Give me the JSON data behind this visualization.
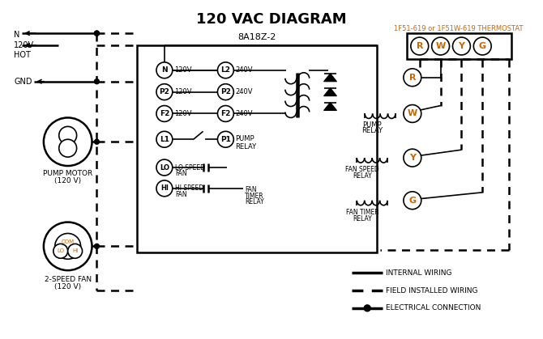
{
  "title": "120 VAC DIAGRAM",
  "title_fontsize": 13,
  "title_fontweight": "bold",
  "bg_color": "#ffffff",
  "text_color": "#000000",
  "orange_color": "#cc6600",
  "thermostat_label": "1F51-619 or 1F51W-619 THERMOSTAT",
  "controller_label": "8A18Z-2",
  "terminal_labels_thermostat": [
    "R",
    "W",
    "Y",
    "G"
  ],
  "pump_motor_label": "PUMP MOTOR\n(120 V)",
  "fan_label": "2-SPEED FAN\n(120 V)",
  "legend_items": [
    "INTERNAL WIRING",
    "FIELD INSTALLED WIRING",
    "ELECTRICAL CONNECTION"
  ]
}
